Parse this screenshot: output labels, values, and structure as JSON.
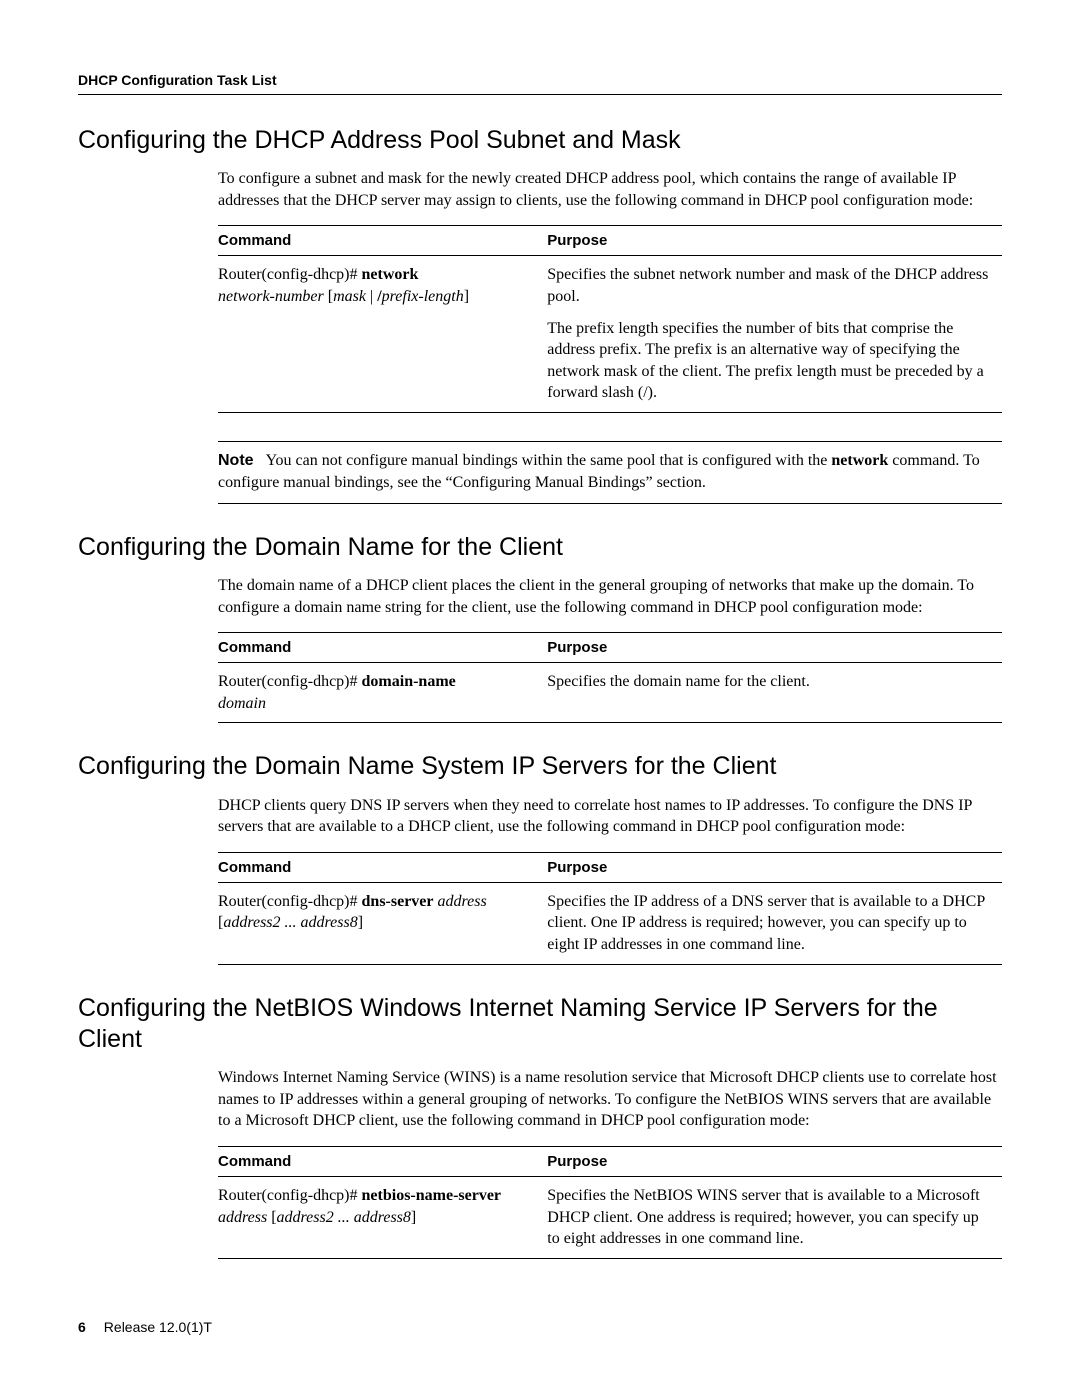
{
  "page": {
    "running_head": "DHCP Configuration Task List",
    "footer_page": "6",
    "footer_release": "Release 12.0(1)T"
  },
  "sections": {
    "s1": {
      "heading": "Configuring the DHCP Address Pool Subnet and Mask",
      "intro": "To configure a subnet and mask for the newly created DHCP address pool, which contains the range of available IP addresses that the DHCP server may assign to clients, use the following command in DHCP pool configuration mode:",
      "table": {
        "th_cmd": "Command",
        "th_purpose": "Purpose",
        "cmd_prefix": "Router(config-dhcp)# ",
        "cmd_bold": "network",
        "cmd_line2_ital1": "network-number",
        "cmd_line2_plain1": " [",
        "cmd_line2_ital2": "mask",
        "cmd_line2_plain2": " | ",
        "cmd_line2_bold_slash": "/",
        "cmd_line2_ital3": "prefix-length",
        "cmd_line2_plain3": "]",
        "purpose_p1": "Specifies the subnet network number and mask of the DHCP address pool.",
        "purpose_p2": "The prefix length specifies the number of bits that comprise the address prefix. The prefix is an alternative way of specifying the network mask of the client. The prefix length must be preceded by a forward slash (/)."
      },
      "note_label": "Note",
      "note_text_1": "You can not configure manual bindings within the same pool that is configured with the ",
      "note_bold": "network",
      "note_text_2": " command. To configure manual bindings, see the “Configuring Manual Bindings” section."
    },
    "s2": {
      "heading": "Configuring the Domain Name for the Client",
      "intro": "The domain name of a DHCP client places the client in the general grouping of networks that make up the domain. To configure a domain name string for the client, use the following command in DHCP pool configuration mode:",
      "table": {
        "th_cmd": "Command",
        "th_purpose": "Purpose",
        "cmd_prefix": "Router(config-dhcp)# ",
        "cmd_bold": "domain-name",
        "cmd_arg_ital": "domain",
        "purpose": "Specifies the domain name for the client."
      }
    },
    "s3": {
      "heading": "Configuring the Domain Name System IP Servers for the Client",
      "intro": "DHCP clients query DNS IP servers when they need to correlate host names to IP addresses. To configure the DNS IP servers that are available to a DHCP client, use the following command in DHCP pool configuration mode:",
      "table": {
        "th_cmd": "Command",
        "th_purpose": "Purpose",
        "cmd_prefix": "Router(config-dhcp)# ",
        "cmd_bold": "dns-server",
        "cmd_ital1": " address",
        "cmd_line2_plain1": "[",
        "cmd_line2_ital": "address2 ... address8",
        "cmd_line2_plain2": "]",
        "purpose": "Specifies the IP address of a DNS server that is available to a DHCP client. One IP address is required; however, you can specify up to eight IP addresses in one command line."
      }
    },
    "s4": {
      "heading": "Configuring the NetBIOS Windows Internet Naming Service IP Servers for the Client",
      "intro": "Windows Internet Naming Service (WINS) is a name resolution service that Microsoft DHCP clients use to correlate host names to IP addresses within a general grouping of networks. To configure the NetBIOS WINS servers that are available to a Microsoft DHCP client, use the following command in DHCP pool configuration mode:",
      "table": {
        "th_cmd": "Command",
        "th_purpose": "Purpose",
        "cmd_prefix": "Router(config-dhcp)# ",
        "cmd_bold": "netbios-name-server",
        "cmd_line2_ital1": "address",
        "cmd_line2_plain1": " [",
        "cmd_line2_ital2": "address2 ... address8",
        "cmd_line2_plain2": "]",
        "purpose": "Specifies the NetBIOS WINS server that is available to a Microsoft DHCP client. One address is required; however, you can specify up to eight addresses in one command line."
      }
    }
  }
}
